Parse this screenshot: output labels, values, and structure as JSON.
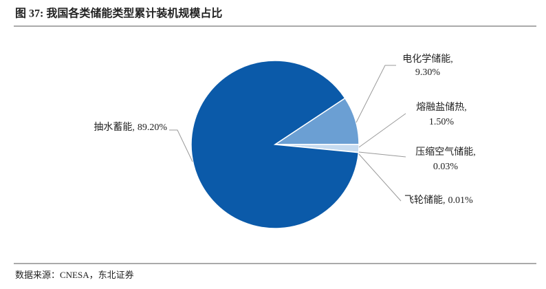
{
  "chart_data": {
    "type": "pie",
    "title": "图 37: 我国各类储能类型累计装机规模占比",
    "categories": [
      "电化学储能,",
      "熔融盐储热,",
      "压缩空气储能,",
      "飞轮储能,",
      "抽水蓄能,"
    ],
    "values": [
      9.3,
      1.5,
      0.03,
      0.01,
      89.2
    ],
    "value_labels": [
      "9.30%",
      "1.50%",
      "0.03%",
      "0.01%",
      "89.20%"
    ],
    "colors": [
      "#6b9fd3",
      "#c6dbf0",
      "#e4eef8",
      "#f2f6fb",
      "#0b5aa9"
    ],
    "source": "数据来源：CNESA，东北证券"
  }
}
